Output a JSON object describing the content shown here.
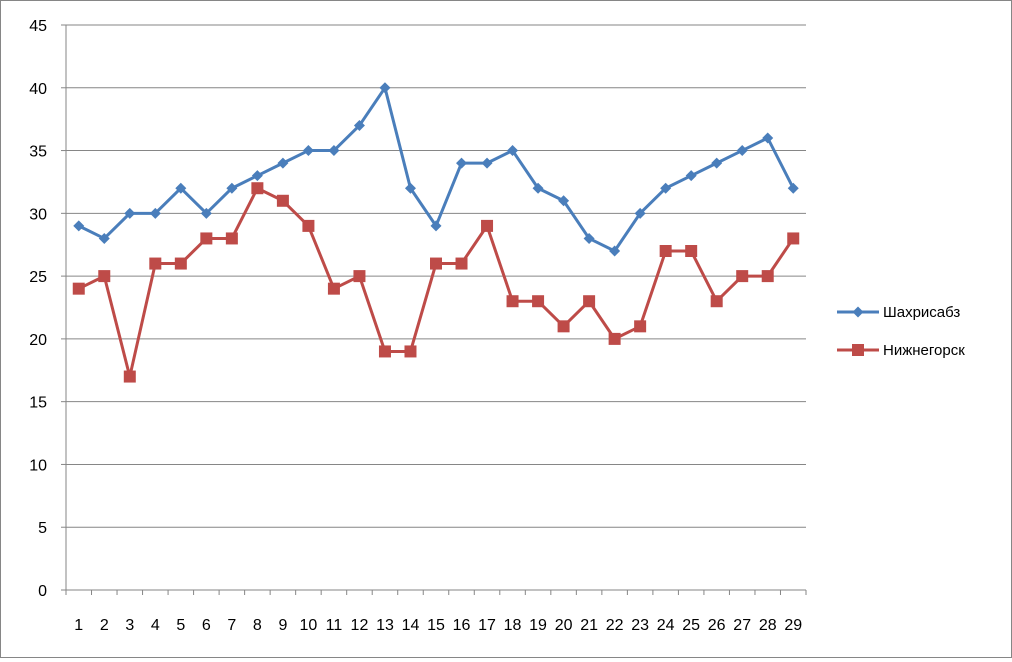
{
  "chart_data": {
    "type": "line",
    "title": "",
    "xlabel": "",
    "ylabel": "",
    "x": [
      1,
      2,
      3,
      4,
      5,
      6,
      7,
      8,
      9,
      10,
      11,
      12,
      13,
      14,
      15,
      16,
      17,
      18,
      19,
      20,
      21,
      22,
      23,
      24,
      25,
      26,
      27,
      28,
      29
    ],
    "ylim": [
      0,
      45
    ],
    "yticks": [
      0,
      5,
      10,
      15,
      20,
      25,
      30,
      35,
      40,
      45
    ],
    "grid": "horizontal",
    "legend_position": "right",
    "series": [
      {
        "name": "Шахрисабз",
        "color": "#4a7ebb",
        "marker": "diamond",
        "values": [
          29,
          28,
          30,
          30,
          32,
          30,
          32,
          33,
          34,
          35,
          35,
          37,
          40,
          32,
          29,
          34,
          34,
          35,
          32,
          31,
          28,
          27,
          30,
          32,
          33,
          34,
          35,
          36,
          32
        ]
      },
      {
        "name": "Нижнегорск",
        "color": "#be4b48",
        "marker": "square",
        "values": [
          24,
          25,
          17,
          26,
          26,
          28,
          28,
          32,
          31,
          29,
          24,
          25,
          19,
          19,
          26,
          26,
          29,
          23,
          23,
          21,
          23,
          20,
          21,
          27,
          27,
          23,
          25,
          25,
          28
        ]
      }
    ]
  }
}
